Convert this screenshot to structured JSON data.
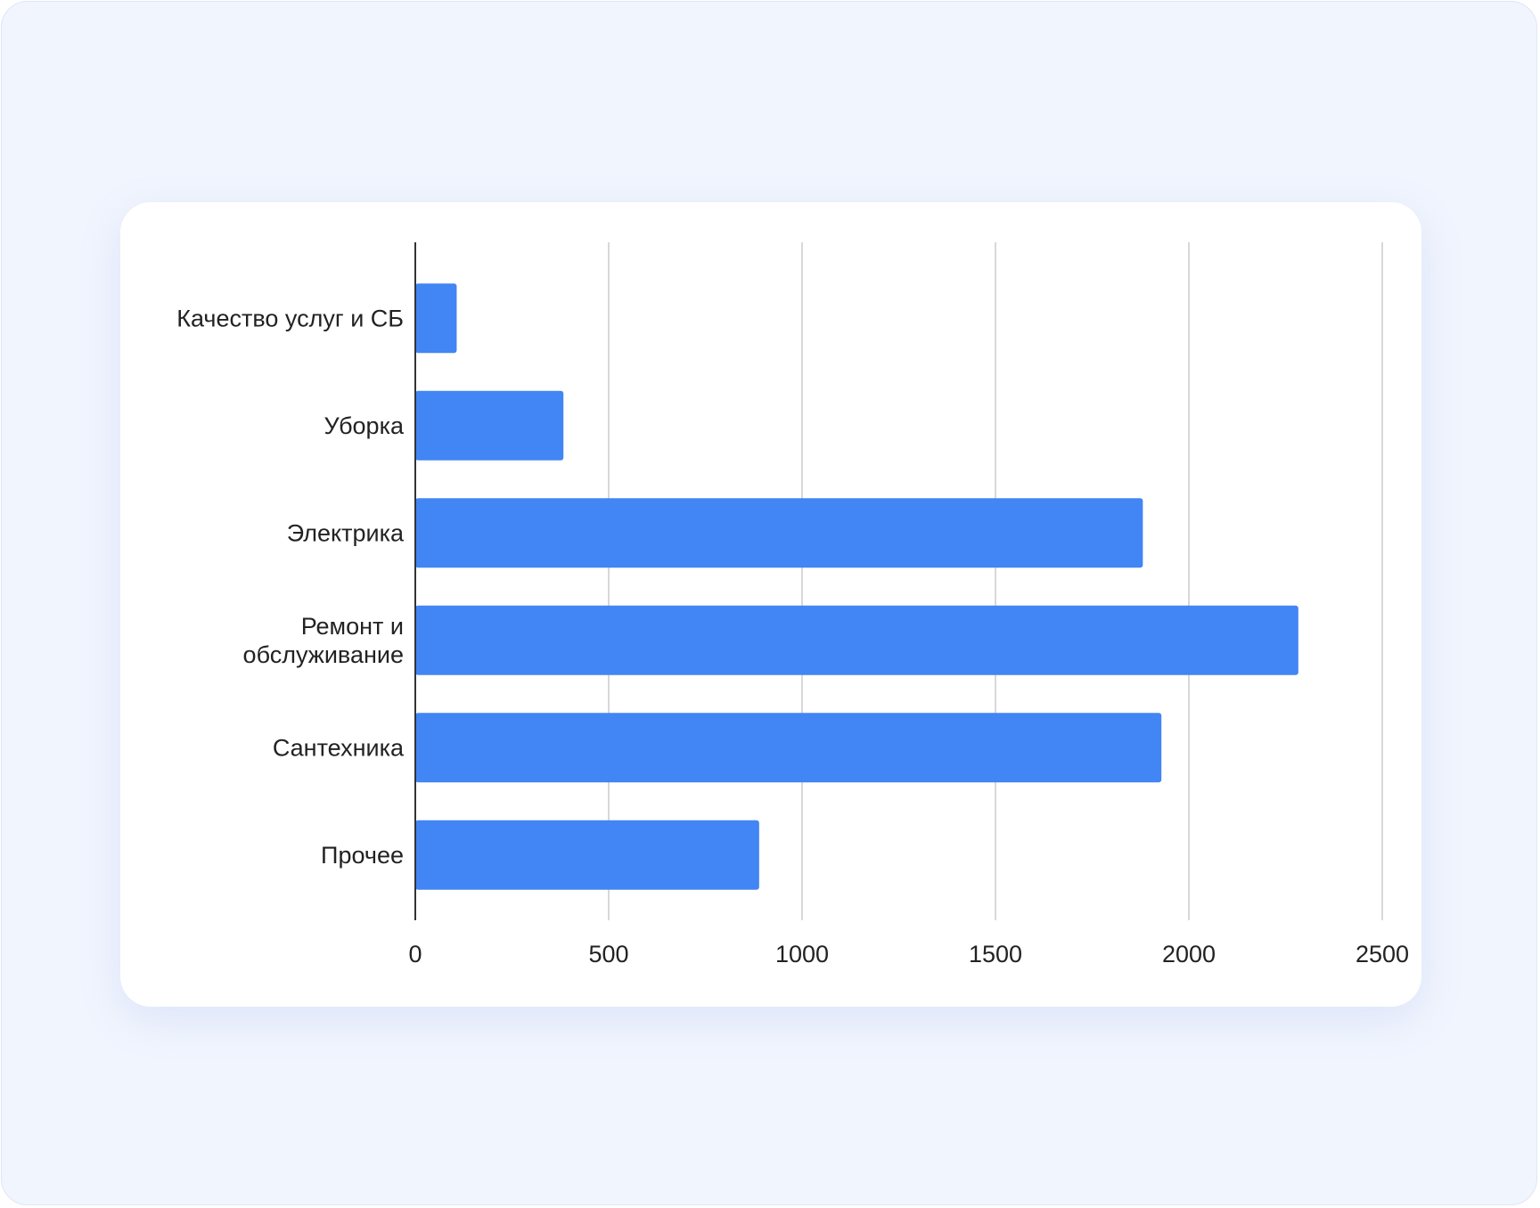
{
  "chart_data": {
    "type": "bar",
    "orientation": "horizontal",
    "categories": [
      [
        "Качество услуг и СБ"
      ],
      [
        "Уборка"
      ],
      [
        "Электрика"
      ],
      [
        "Ремонт и",
        "обслуживание"
      ],
      [
        "Сантехника"
      ],
      [
        "Прочее"
      ]
    ],
    "values": [
      107,
      383,
      1881,
      2283,
      1929,
      889
    ],
    "xlim": [
      0,
      2500
    ],
    "xticks": [
      "0",
      "500",
      "1000",
      "1500",
      "2000",
      "2500"
    ],
    "grid": true,
    "bar_color": "#4285f4",
    "title": "",
    "xlabel": "",
    "ylabel": ""
  }
}
